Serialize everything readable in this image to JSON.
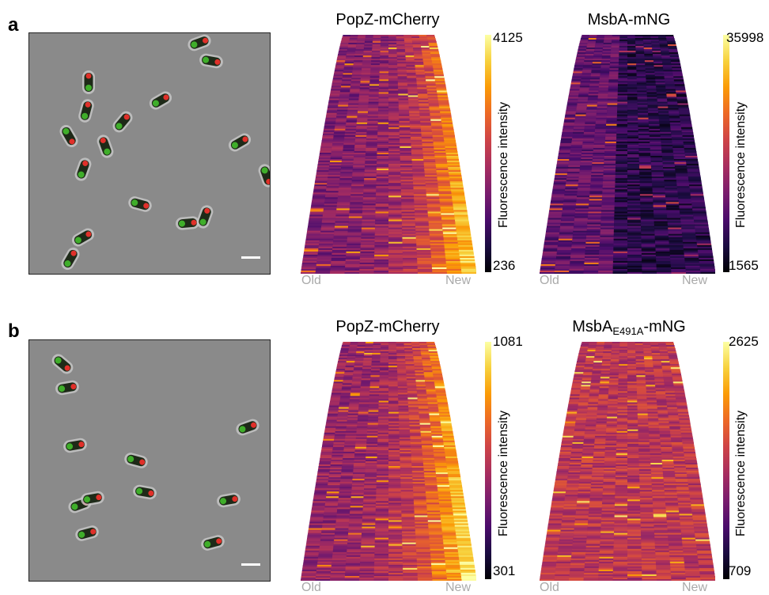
{
  "panels": [
    {
      "label": "a",
      "kymographs": [
        {
          "title": "PopZ-mCherry",
          "max": "4125",
          "min": "236",
          "colorbar_label": "Fluorescence intensity",
          "old": "Old",
          "new": "New",
          "hot_side": "new",
          "mean": 0.35
        },
        {
          "title": "MsbA-mNG",
          "max": "35998",
          "min": "1565",
          "colorbar_label": "Fluorescence intensity",
          "old": "Old",
          "new": "New",
          "hot_side": "none",
          "mean": 0.2
        }
      ]
    },
    {
      "label": "b",
      "kymographs": [
        {
          "title": "PopZ-mCherry",
          "max": "1081",
          "min": "301",
          "colorbar_label": "Fluorescence intensity",
          "old": "Old",
          "new": "New",
          "hot_side": "new",
          "mean": 0.4
        },
        {
          "title_main": "MsbA",
          "title_sub": "E491A",
          "title_tail": "-mNG",
          "max": "2625",
          "min": "709",
          "colorbar_label": "Fluorescence intensity",
          "old": "Old",
          "new": "New",
          "hot_side": "none",
          "mean": 0.5
        }
      ]
    }
  ],
  "colors": {
    "inferno_map": [
      "#000004",
      "#1b0c41",
      "#4a0c6b",
      "#781c6d",
      "#a52c60",
      "#cf4446",
      "#ed6925",
      "#fb9b06",
      "#f7d13d",
      "#fcffa4"
    ],
    "background_gray": "#8a8a8a",
    "cell_green": "#3fae2a",
    "cell_red": "#e0302a",
    "axis_label_gray": "#aaaaaa"
  }
}
